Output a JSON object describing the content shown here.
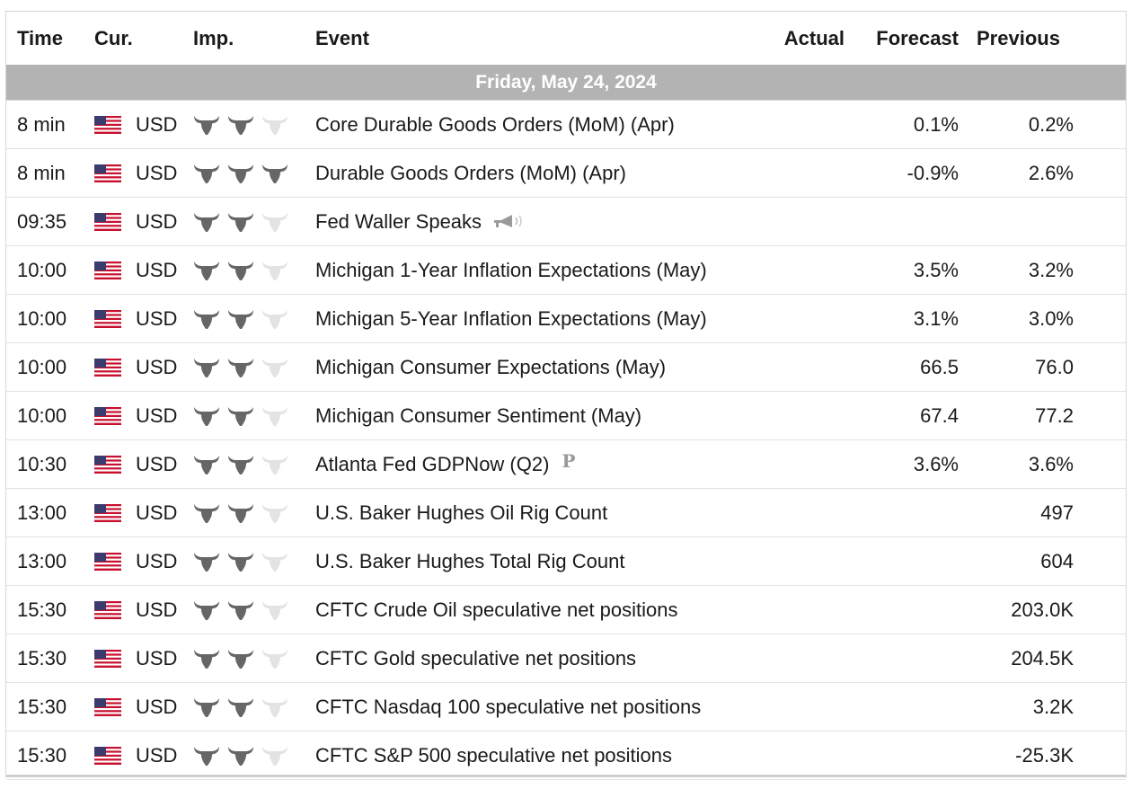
{
  "header": {
    "time": "Time",
    "currency": "Cur.",
    "importance": "Imp.",
    "event": "Event",
    "actual": "Actual",
    "forecast": "Forecast",
    "previous": "Previous"
  },
  "date_label": "Friday, May 24, 2024",
  "colors": {
    "bull_active": "#666666",
    "bull_inactive": "#e3e3e3",
    "date_bar": "#b3b3b3"
  },
  "events": [
    {
      "time": "8 min",
      "currency": "USD",
      "flag_icon": "us-flag-icon",
      "importance": 2,
      "event": "Core Durable Goods Orders (MoM) (Apr)",
      "extra": null,
      "actual": "",
      "forecast": "0.1%",
      "previous": "0.2%"
    },
    {
      "time": "8 min",
      "currency": "USD",
      "flag_icon": "us-flag-icon",
      "importance": 3,
      "event": "Durable Goods Orders (MoM) (Apr)",
      "extra": null,
      "actual": "",
      "forecast": "-0.9%",
      "previous": "2.6%"
    },
    {
      "time": "09:35",
      "currency": "USD",
      "flag_icon": "us-flag-icon",
      "importance": 2,
      "event": "Fed Waller Speaks",
      "extra": "speech-icon",
      "actual": "",
      "forecast": "",
      "previous": ""
    },
    {
      "time": "10:00",
      "currency": "USD",
      "flag_icon": "us-flag-icon",
      "importance": 2,
      "event": "Michigan 1-Year Inflation Expectations (May)",
      "extra": null,
      "actual": "",
      "forecast": "3.5%",
      "previous": "3.2%"
    },
    {
      "time": "10:00",
      "currency": "USD",
      "flag_icon": "us-flag-icon",
      "importance": 2,
      "event": "Michigan 5-Year Inflation Expectations (May)",
      "extra": null,
      "actual": "",
      "forecast": "3.1%",
      "previous": "3.0%"
    },
    {
      "time": "10:00",
      "currency": "USD",
      "flag_icon": "us-flag-icon",
      "importance": 2,
      "event": "Michigan Consumer Expectations (May)",
      "extra": null,
      "actual": "",
      "forecast": "66.5",
      "previous": "76.0"
    },
    {
      "time": "10:00",
      "currency": "USD",
      "flag_icon": "us-flag-icon",
      "importance": 2,
      "event": "Michigan Consumer Sentiment (May)",
      "extra": null,
      "actual": "",
      "forecast": "67.4",
      "previous": "77.2"
    },
    {
      "time": "10:30",
      "currency": "USD",
      "flag_icon": "us-flag-icon",
      "importance": 2,
      "event": "Atlanta Fed GDPNow (Q2)",
      "extra": "preliminary-icon",
      "extra_text": "P",
      "actual": "",
      "forecast": "3.6%",
      "previous": "3.6%"
    },
    {
      "time": "13:00",
      "currency": "USD",
      "flag_icon": "us-flag-icon",
      "importance": 2,
      "event": "U.S. Baker Hughes Oil Rig Count",
      "extra": null,
      "actual": "",
      "forecast": "",
      "previous": "497"
    },
    {
      "time": "13:00",
      "currency": "USD",
      "flag_icon": "us-flag-icon",
      "importance": 2,
      "event": "U.S. Baker Hughes Total Rig Count",
      "extra": null,
      "actual": "",
      "forecast": "",
      "previous": "604"
    },
    {
      "time": "15:30",
      "currency": "USD",
      "flag_icon": "us-flag-icon",
      "importance": 2,
      "event": "CFTC Crude Oil speculative net positions",
      "extra": null,
      "actual": "",
      "forecast": "",
      "previous": "203.0K"
    },
    {
      "time": "15:30",
      "currency": "USD",
      "flag_icon": "us-flag-icon",
      "importance": 2,
      "event": "CFTC Gold speculative net positions",
      "extra": null,
      "actual": "",
      "forecast": "",
      "previous": "204.5K"
    },
    {
      "time": "15:30",
      "currency": "USD",
      "flag_icon": "us-flag-icon",
      "importance": 2,
      "event": "CFTC Nasdaq 100 speculative net positions",
      "extra": null,
      "actual": "",
      "forecast": "",
      "previous": "3.2K"
    },
    {
      "time": "15:30",
      "currency": "USD",
      "flag_icon": "us-flag-icon",
      "importance": 2,
      "event": "CFTC S&P 500 speculative net positions",
      "extra": null,
      "actual": "",
      "forecast": "",
      "previous": "-25.3K"
    }
  ]
}
